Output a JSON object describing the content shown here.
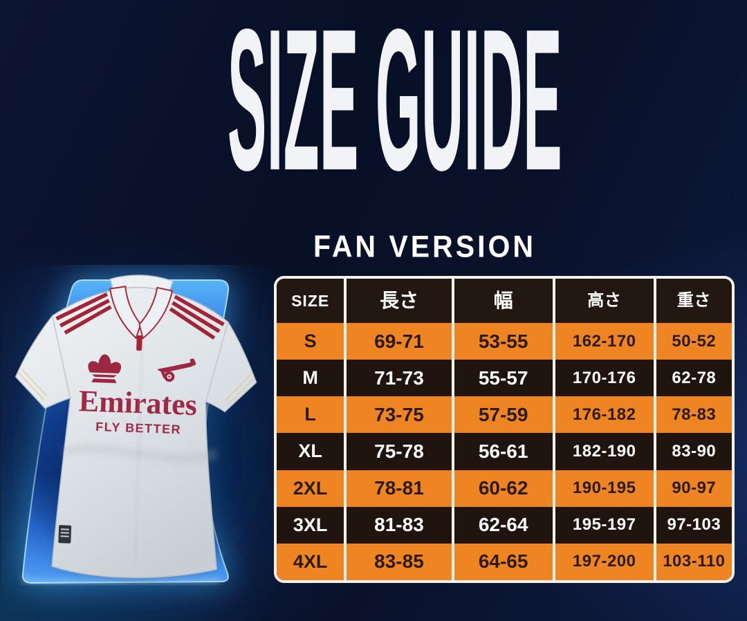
{
  "title": "SIZE GUIDE",
  "subtitle": "FAN VERSION",
  "jersey": {
    "brand_icon": "adidas-trefoil-icon",
    "crest_icon": "arsenal-cannon-icon",
    "sponsor_line1": "Emirates",
    "sponsor_line2": "FLY BETTER"
  },
  "colors": {
    "accent_orange": "#ef8422",
    "table_dark_cell": "#20150e",
    "separator_white": "#f6f2ea",
    "background_navy": "#0a122b",
    "panel_blue": "#1c55bd",
    "panel_glow_cyan": "#6fd4ff",
    "jersey_red": "#9d2843",
    "jersey_white": "#e7eaec"
  },
  "chart_data": {
    "type": "table",
    "title": "FAN VERSION",
    "columns": [
      "SIZE",
      "長さ",
      "幅",
      "高さ",
      "重さ"
    ],
    "rows": [
      [
        "S",
        "69-71",
        "53-55",
        "162-170",
        "50-52"
      ],
      [
        "M",
        "71-73",
        "55-57",
        "170-176",
        "62-78"
      ],
      [
        "L",
        "73-75",
        "57-59",
        "176-182",
        "78-83"
      ],
      [
        "XL",
        "75-78",
        "56-61",
        "182-190",
        "83-90"
      ],
      [
        "2XL",
        "78-81",
        "60-62",
        "190-195",
        "90-97"
      ],
      [
        "3XL",
        "81-83",
        "62-64",
        "195-197",
        "97-103"
      ],
      [
        "4XL",
        "83-85",
        "64-65",
        "197-200",
        "103-110"
      ]
    ],
    "layout": {
      "header_background": "black",
      "row_background_alternation": [
        "orange",
        "black"
      ],
      "first_row_color": "orange",
      "grid_lines": "white vertical separators, rounded white outer border"
    }
  }
}
